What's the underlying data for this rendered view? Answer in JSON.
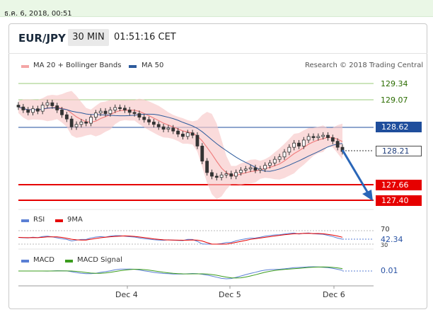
{
  "timestamp_bar": "ธ.ค. 6, 2018, 00:51",
  "header": {
    "symbol": "EUR/JPY",
    "timeframe": "30 MIN",
    "time": "01:51:16 CET"
  },
  "legend": {
    "ma20": "MA 20 + Bollinger Bands",
    "ma50": "MA 50",
    "credit": "Research © 2018 Trading Central",
    "rsi": "RSI",
    "rsi_ma": "9MA",
    "macd": "MACD",
    "macd_signal": "MACD Signal"
  },
  "colors": {
    "resistance": "#9acb7a",
    "pivot": "#1f4e9c",
    "support": "#e60000",
    "ma20": "#f08080",
    "ma50": "#2d5b9c",
    "macd_line": "#5a7fd4",
    "macd_signal": "#3b9c1e"
  },
  "levels": {
    "r2": "129.34",
    "r1": "129.07",
    "pivot": "128.62",
    "last": "128.21",
    "s1": "127.66",
    "s2": "127.40"
  },
  "rsi_panel": {
    "upper": "70",
    "value": "42.34",
    "lower": "30"
  },
  "macd_panel": {
    "value": "0.01"
  },
  "x_axis": [
    "Dec 4",
    "Dec 5",
    "Dec 6"
  ],
  "chart_data": {
    "type": "candlestick",
    "title": "",
    "y_range": [
      127.2,
      129.55
    ],
    "x_labels": [
      "Dec 4",
      "Dec 5",
      "Dec 6"
    ],
    "close_prices": [
      128.95,
      128.9,
      128.86,
      128.92,
      128.88,
      128.98,
      129.02,
      128.97,
      128.9,
      128.82,
      128.75,
      128.62,
      128.66,
      128.7,
      128.68,
      128.78,
      128.85,
      128.88,
      128.84,
      128.9,
      128.94,
      128.93,
      128.9,
      128.86,
      128.84,
      128.78,
      128.74,
      128.7,
      128.66,
      128.62,
      128.58,
      128.6,
      128.55,
      128.5,
      128.46,
      128.52,
      128.48,
      128.3,
      128.05,
      127.86,
      127.8,
      127.78,
      127.82,
      127.84,
      127.8,
      127.86,
      127.9,
      127.92,
      127.94,
      127.9,
      127.92,
      127.98,
      128.02,
      128.08,
      128.12,
      128.2,
      128.28,
      128.35,
      128.3,
      128.4,
      128.46,
      128.44,
      128.46,
      128.48,
      128.44,
      128.38,
      128.28,
      128.21
    ],
    "levels": {
      "resistance_2": 129.34,
      "resistance_1": 129.07,
      "pivot": 128.62,
      "last": 128.21,
      "support_1": 127.66,
      "support_2": 127.4
    },
    "projection": "down toward 127.40",
    "rsi": 42.34,
    "macd": 0.01
  }
}
